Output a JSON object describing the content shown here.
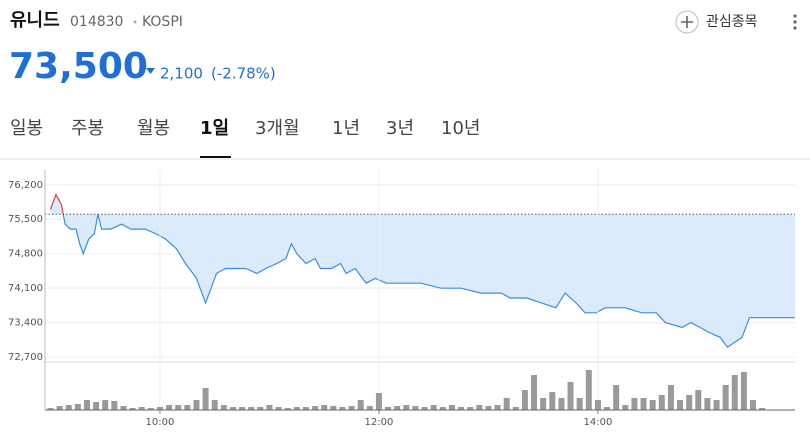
{
  "header": {
    "name": "유니드",
    "code": "014830",
    "market": "KOSPI",
    "watch": "관심종목",
    "price": "73,500",
    "change": "2,100",
    "change_pct": "(-2.78%)"
  },
  "tabs": [
    "일봉",
    "주봉",
    "월봉",
    "1일",
    "3개월",
    "1년",
    "3년",
    "10년"
  ],
  "active_tab": 3,
  "chart_data": [
    {
      "type": "line",
      "color": "#3b8de0",
      "fill_color": "#dcebfb",
      "up_color": "#e05050",
      "baseline": 75600,
      "x": [
        "09:00",
        "09:03",
        "09:06",
        "09:07",
        "09:08",
        "09:11",
        "09:14",
        "09:16",
        "09:18",
        "09:21",
        "09:24",
        "09:26",
        "09:28",
        "09:33",
        "09:39",
        "09:44",
        "09:52",
        "09:58",
        "10:03",
        "10:09",
        "10:14",
        "10:20",
        "10:22",
        "10:25",
        "10:28",
        "10:31",
        "10:36",
        "10:42",
        "10:47",
        "10:53",
        "10:58",
        "11:04",
        "11:09",
        "11:12",
        "11:15",
        "11:20",
        "11:25",
        "11:28",
        "11:34",
        "11:39",
        "11:42",
        "11:47",
        "11:53",
        "11:58",
        "12:04",
        "12:12",
        "12:23",
        "12:34",
        "12:45",
        "12:56",
        "13:07",
        "13:12",
        "13:21",
        "13:29",
        "13:37",
        "13:42",
        "13:48",
        "13:53",
        "13:59",
        "14:04",
        "14:15",
        "14:24",
        "14:32",
        "14:37",
        "14:46",
        "14:51",
        "14:56",
        "15:01",
        "15:07",
        "15:11",
        "15:15",
        "15:19",
        "15:23",
        "15:48"
      ],
      "values": [
        75700,
        76000,
        75800,
        75600,
        75400,
        75300,
        75300,
        75000,
        74800,
        75100,
        75200,
        75600,
        75300,
        75300,
        75400,
        75300,
        75300,
        75200,
        75100,
        74900,
        74600,
        74300,
        74100,
        73800,
        74100,
        74400,
        74500,
        74500,
        74500,
        74400,
        74500,
        74600,
        74700,
        75000,
        74800,
        74600,
        74700,
        74500,
        74500,
        74600,
        74400,
        74500,
        74200,
        74300,
        74200,
        74200,
        74200,
        74100,
        74100,
        74000,
        74000,
        73900,
        73900,
        73800,
        73700,
        74000,
        73800,
        73600,
        73600,
        73700,
        73700,
        73600,
        73600,
        73400,
        73300,
        73400,
        73300,
        73200,
        73100,
        72900,
        73000,
        73100,
        73500,
        73500
      ],
      "xlim": [
        "08:57",
        "15:48"
      ],
      "ylim": [
        72600,
        76500
      ],
      "yticks": [
        {
          "value": 76200,
          "label": "76,200"
        },
        {
          "value": 75500,
          "label": "75,500"
        },
        {
          "value": 74800,
          "label": "74,800"
        },
        {
          "value": 74100,
          "label": "74,100"
        },
        {
          "value": 73400,
          "label": "73,400"
        },
        {
          "value": 72700,
          "label": "72,700"
        }
      ]
    },
    {
      "type": "bar",
      "color": "#9a9a9a",
      "x": [
        "09:00",
        "09:05",
        "09:10",
        "09:15",
        "09:20",
        "09:25",
        "09:30",
        "09:35",
        "09:40",
        "09:45",
        "09:50",
        "09:55",
        "10:00",
        "10:05",
        "10:10",
        "10:15",
        "10:20",
        "10:25",
        "10:30",
        "10:35",
        "10:40",
        "10:45",
        "10:50",
        "10:55",
        "11:00",
        "11:05",
        "11:10",
        "11:15",
        "11:20",
        "11:25",
        "11:30",
        "11:35",
        "11:40",
        "11:45",
        "11:50",
        "11:55",
        "12:00",
        "12:05",
        "12:10",
        "12:15",
        "12:20",
        "12:25",
        "12:30",
        "12:35",
        "12:40",
        "12:45",
        "12:50",
        "12:55",
        "13:00",
        "13:05",
        "13:10",
        "13:15",
        "13:20",
        "13:25",
        "13:30",
        "13:35",
        "13:40",
        "13:45",
        "13:50",
        "13:55",
        "14:00",
        "14:05",
        "14:10",
        "14:15",
        "14:20",
        "14:25",
        "14:30",
        "14:35",
        "14:40",
        "14:45",
        "14:50",
        "14:55",
        "15:00",
        "15:05",
        "15:10",
        "15:15",
        "15:20",
        "15:25",
        "15:30"
      ],
      "values": [
        2,
        4,
        5,
        6,
        10,
        8,
        10,
        9,
        4,
        2,
        3,
        2,
        3,
        5,
        5,
        5,
        10,
        22,
        10,
        5,
        3,
        3,
        3,
        3,
        5,
        3,
        2,
        3,
        3,
        4,
        5,
        4,
        3,
        4,
        10,
        4,
        17,
        3,
        4,
        5,
        4,
        3,
        5,
        3,
        5,
        3,
        3,
        5,
        4,
        5,
        12,
        3,
        20,
        35,
        12,
        18,
        12,
        28,
        12,
        40,
        10,
        3,
        25,
        5,
        12,
        12,
        10,
        15,
        25,
        10,
        15,
        20,
        12,
        10,
        25,
        35,
        38,
        10,
        2
      ],
      "xlim": [
        "08:57",
        "15:48"
      ],
      "ylim": [
        0,
        45
      ],
      "xticks": [
        "10:00",
        "12:00",
        "14:00"
      ]
    }
  ]
}
